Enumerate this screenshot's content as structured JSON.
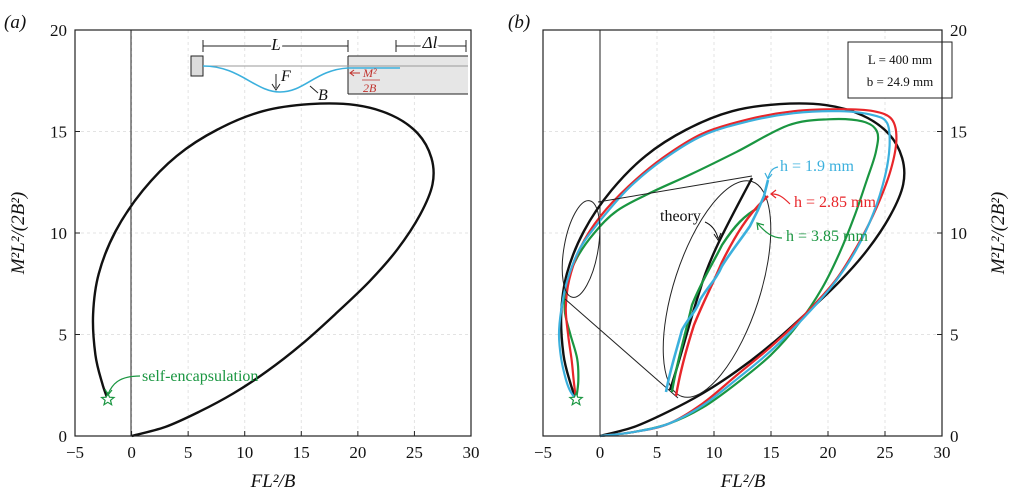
{
  "chart_data": [
    {
      "type": "line",
      "panel_label": "(a)",
      "xlabel": "FL²/B",
      "ylabel": "M²L²/(2B²)",
      "xlim": [
        -5,
        30
      ],
      "ylim": [
        0,
        20
      ],
      "xticks": [
        "−5",
        "0",
        "5",
        "10",
        "15",
        "20",
        "25",
        "30"
      ],
      "yticks": [
        "0",
        "5",
        "10",
        "15",
        "20"
      ],
      "grid": true,
      "inset_labels": {
        "L": "L",
        "dl": "Δl",
        "F": "F",
        "B": "B",
        "M2": "M²",
        "twoB": "2B"
      },
      "series": [
        {
          "name": "",
          "color": "#111111",
          "points": [
            [
              0,
              0
            ],
            [
              3,
              0.45
            ],
            [
              6,
              1.2
            ],
            [
              9,
              2.1
            ],
            [
              12,
              3.2
            ],
            [
              15,
              4.5
            ],
            [
              18,
              6
            ],
            [
              21,
              7.6
            ],
            [
              23.5,
              9.2
            ],
            [
              25.5,
              10.9
            ],
            [
              26.6,
              12.4
            ],
            [
              26.5,
              13.7
            ],
            [
              25.3,
              14.9
            ],
            [
              23,
              15.8
            ],
            [
              19.8,
              16.3
            ],
            [
              15.8,
              16.35
            ],
            [
              11.6,
              16
            ],
            [
              7.6,
              15.1
            ],
            [
              4,
              13.8
            ],
            [
              1,
              12.1
            ],
            [
              -1.4,
              10.1
            ],
            [
              -2.9,
              8
            ],
            [
              -3.4,
              6
            ],
            [
              -3.2,
              4
            ],
            [
              -2.6,
              2.6
            ],
            [
              -2.1,
              1.8
            ]
          ]
        }
      ],
      "annotations": [
        {
          "text": "self-encapsulation",
          "color": "#1a9641",
          "x": -2.1,
          "y": 1.8
        }
      ]
    },
    {
      "type": "line",
      "panel_label": "(b)",
      "xlabel": "FL²/B",
      "ylabel": "M²L²/(2B²)",
      "xlim": [
        -5,
        30
      ],
      "ylim": [
        0,
        20
      ],
      "xticks": [
        "−5",
        "0",
        "5",
        "10",
        "15",
        "20",
        "25",
        "30"
      ],
      "yticks": [
        "0",
        "5",
        "10",
        "15",
        "20"
      ],
      "grid": true,
      "legend_box": [
        "L = 400 mm",
        "b = 24.9 mm"
      ],
      "series": [
        {
          "name": "theory",
          "color": "#111111",
          "points": [
            [
              0,
              0
            ],
            [
              3,
              0.45
            ],
            [
              6,
              1.2
            ],
            [
              9,
              2.1
            ],
            [
              12,
              3.2
            ],
            [
              15,
              4.5
            ],
            [
              18,
              6
            ],
            [
              21,
              7.6
            ],
            [
              23.5,
              9.2
            ],
            [
              25.5,
              10.9
            ],
            [
              26.6,
              12.4
            ],
            [
              26.5,
              13.7
            ],
            [
              25.3,
              14.9
            ],
            [
              23,
              15.8
            ],
            [
              19.8,
              16.3
            ],
            [
              15.8,
              16.35
            ],
            [
              11.6,
              16
            ],
            [
              7.6,
              15.1
            ],
            [
              4,
              13.8
            ],
            [
              1,
              12.1
            ],
            [
              -1.4,
              10.1
            ],
            [
              -2.9,
              8
            ],
            [
              -3.4,
              6
            ],
            [
              -3.2,
              4
            ],
            [
              -2.6,
              2.6
            ],
            [
              -2.1,
              1.8
            ]
          ]
        },
        {
          "name": "h = 1.9 mm",
          "color": "#3bb0dd",
          "points": [
            [
              0,
              0
            ],
            [
              3,
              0.2
            ],
            [
              6,
              0.6
            ],
            [
              9,
              1.5
            ],
            [
              12,
              2.8
            ],
            [
              15,
              4.2
            ],
            [
              18,
              5.9
            ],
            [
              20.5,
              7.5
            ],
            [
              22.5,
              9.2
            ],
            [
              24,
              11
            ],
            [
              25,
              12.8
            ],
            [
              25.4,
              14.3
            ],
            [
              25.2,
              15.4
            ],
            [
              24,
              15.8
            ],
            [
              21,
              16
            ],
            [
              17,
              15.9
            ],
            [
              13,
              15.5
            ],
            [
              9,
              14.8
            ],
            [
              5.5,
              13.6
            ],
            [
              2.5,
              12.2
            ],
            [
              0,
              10.6
            ],
            [
              -1.8,
              9.2
            ],
            [
              -2.9,
              7.6
            ],
            [
              -3.4,
              6.2
            ],
            [
              -3.6,
              5
            ],
            [
              -3.4,
              3.8
            ],
            [
              -3.0,
              2.8
            ],
            [
              -2.6,
              2.2
            ],
            [
              -2.1,
              1.8
            ]
          ]
        },
        {
          "name": "h = 2.85 mm",
          "color": "#e8262a",
          "points": [
            [
              0,
              0
            ],
            [
              3,
              0.2
            ],
            [
              6,
              0.6
            ],
            [
              9,
              1.6
            ],
            [
              12,
              3
            ],
            [
              15,
              4.4
            ],
            [
              18,
              6
            ],
            [
              20.7,
              7.7
            ],
            [
              22.7,
              9.5
            ],
            [
              24.3,
              11.3
            ],
            [
              25.5,
              13.1
            ],
            [
              26,
              14.6
            ],
            [
              25.6,
              15.6
            ],
            [
              24,
              16
            ],
            [
              21,
              16.1
            ],
            [
              17,
              16
            ],
            [
              13,
              15.6
            ],
            [
              9,
              14.9
            ],
            [
              5.5,
              13.7
            ],
            [
              2.5,
              12.3
            ],
            [
              0,
              10.8
            ],
            [
              -1.7,
              9.3
            ],
            [
              -2.7,
              7.7
            ],
            [
              -3.0,
              6.3
            ],
            [
              -2.8,
              5
            ],
            [
              -2.5,
              3.8
            ],
            [
              -2.3,
              2.7
            ],
            [
              -2.1,
              1.8
            ]
          ]
        },
        {
          "name": "h = 3.85 mm",
          "color": "#1a9641",
          "points": [
            [
              0,
              0
            ],
            [
              3,
              0.2
            ],
            [
              6,
              0.6
            ],
            [
              9,
              1.4
            ],
            [
              12,
              2.6
            ],
            [
              15,
              4
            ],
            [
              17.5,
              5.6
            ],
            [
              19.5,
              7.3
            ],
            [
              21,
              9
            ],
            [
              22.3,
              10.8
            ],
            [
              23.4,
              12.6
            ],
            [
              24.2,
              14
            ],
            [
              24.3,
              15
            ],
            [
              23,
              15.5
            ],
            [
              20,
              15.6
            ],
            [
              16.5,
              15.3
            ],
            [
              12,
              14
            ],
            [
              8,
              12.9
            ],
            [
              4.5,
              12
            ],
            [
              1.5,
              11.1
            ],
            [
              -0.5,
              10
            ],
            [
              -2,
              8.8
            ],
            [
              -2.9,
              7.5
            ],
            [
              -3.1,
              6.2
            ],
            [
              -2.6,
              5
            ],
            [
              -2.0,
              3.8
            ],
            [
              -1.9,
              2.7
            ],
            [
              -2.1,
              1.8
            ]
          ]
        }
      ],
      "annotations": [
        {
          "text": "theory",
          "color": "#111111"
        },
        {
          "text": "h = 1.9 mm",
          "color": "#3bb0dd"
        },
        {
          "text": "h = 2.85 mm",
          "color": "#e8262a"
        },
        {
          "text": "h = 3.85 mm",
          "color": "#1a9641"
        }
      ]
    }
  ]
}
